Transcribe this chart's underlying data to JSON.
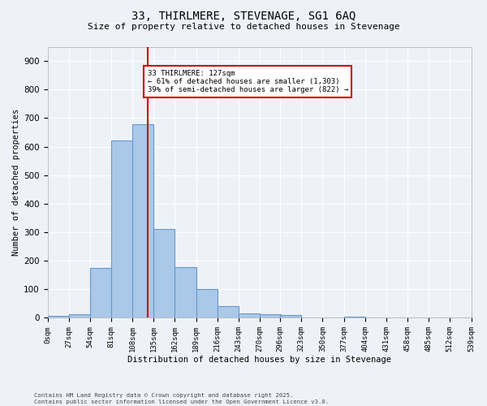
{
  "title": "33, THIRLMERE, STEVENAGE, SG1 6AQ",
  "subtitle": "Size of property relative to detached houses in Stevenage",
  "xlabel": "Distribution of detached houses by size in Stevenage",
  "ylabel": "Number of detached properties",
  "bar_color": "#aac8e8",
  "bar_edge_color": "#6699cc",
  "background_color": "#eef2f8",
  "grid_color": "#ffffff",
  "annotation_line_color": "#cc0000",
  "annotation_box_color": "#cc0000",
  "annotation_text": "33 THIRLMERE: 127sqm\n← 61% of detached houses are smaller (1,303)\n39% of semi-detached houses are larger (822) →",
  "property_size": 127,
  "bins": [
    0,
    27,
    54,
    81,
    108,
    135,
    162,
    189,
    216,
    243,
    270,
    296,
    323,
    350,
    377,
    404,
    431,
    458,
    485,
    512,
    539
  ],
  "bin_labels": [
    "0sqm",
    "27sqm",
    "54sqm",
    "81sqm",
    "108sqm",
    "135sqm",
    "162sqm",
    "189sqm",
    "216sqm",
    "243sqm",
    "270sqm",
    "296sqm",
    "323sqm",
    "350sqm",
    "377sqm",
    "404sqm",
    "431sqm",
    "458sqm",
    "485sqm",
    "512sqm",
    "539sqm"
  ],
  "values": [
    8,
    13,
    175,
    620,
    678,
    310,
    178,
    100,
    42,
    15,
    12,
    10,
    0,
    0,
    5,
    0,
    0,
    0,
    0,
    0
  ],
  "ylim": [
    0,
    950
  ],
  "yticks": [
    0,
    100,
    200,
    300,
    400,
    500,
    600,
    700,
    800,
    900
  ],
  "footnote": "Contains HM Land Registry data © Crown copyright and database right 2025.\nContains public sector information licensed under the Open Government Licence v3.0."
}
